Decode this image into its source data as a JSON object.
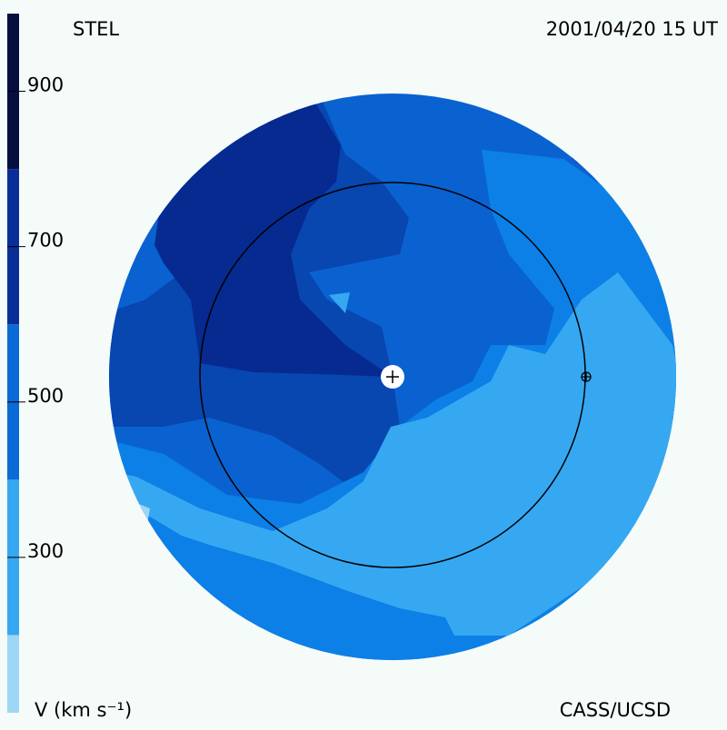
{
  "chart_data": {
    "type": "map",
    "title": "STEL",
    "date": "2001/04/20 15 UT",
    "colorbar_label": "V (km s⁻¹)",
    "credit": "CASS/UCSD",
    "colorbar": {
      "lim": [
        100,
        1000
      ],
      "ticks": [
        300,
        500,
        700,
        900
      ],
      "bands": [
        {
          "from": 100,
          "to": 200,
          "color": "#9ed6f6"
        },
        {
          "from": 200,
          "to": 400,
          "color": "#36a8f2"
        },
        {
          "from": 400,
          "to": 600,
          "color": "#0a6ad6"
        },
        {
          "from": 600,
          "to": 800,
          "color": "#0a2e98"
        },
        {
          "from": 800,
          "to": 1000,
          "color": "#060e40"
        }
      ]
    }
  }
}
